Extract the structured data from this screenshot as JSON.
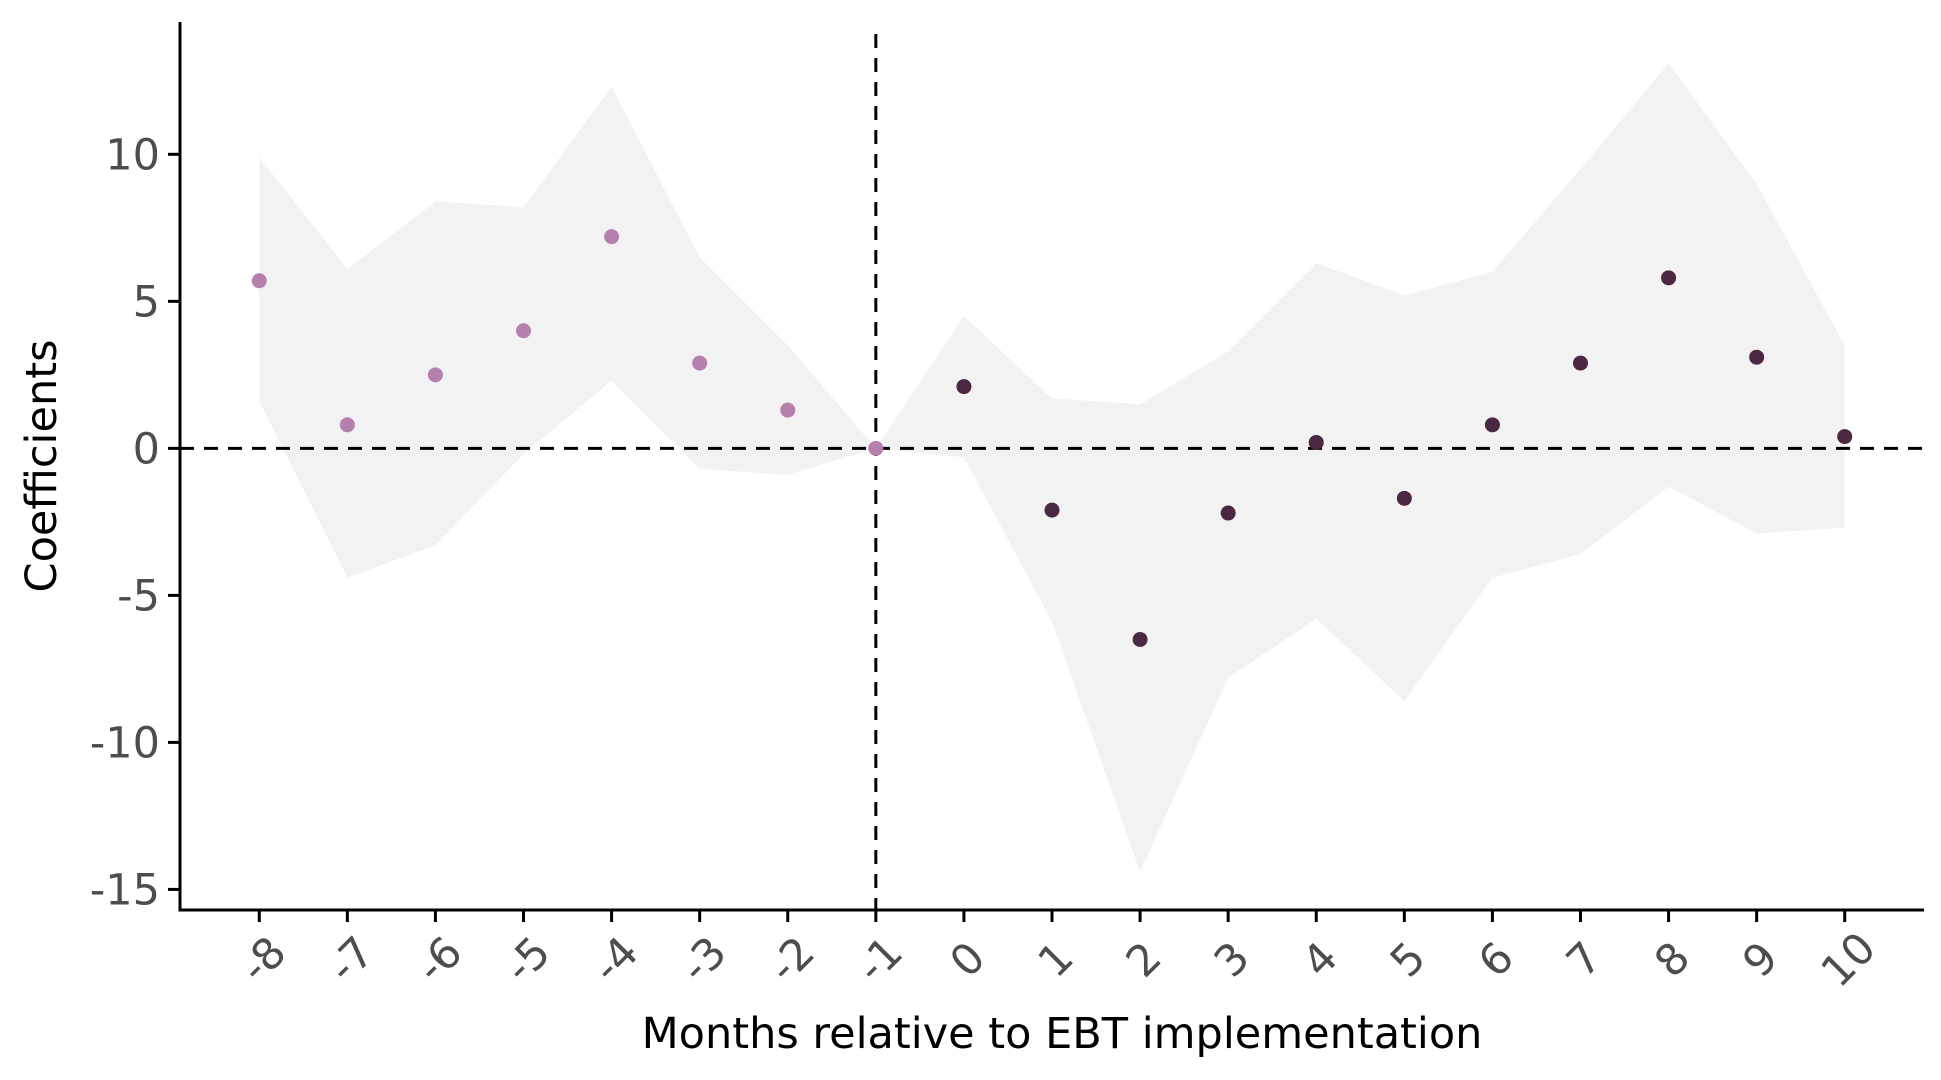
{
  "chart_data": {
    "type": "scatter",
    "title": "",
    "xlabel": "Months relative to EBT implementation",
    "ylabel": "Coefficients",
    "x": [
      -8,
      -7,
      -6,
      -5,
      -4,
      -3,
      -2,
      -1,
      0,
      1,
      2,
      3,
      4,
      5,
      6,
      7,
      8,
      9,
      10
    ],
    "x_tick_labels": [
      "-8",
      "-7",
      "-6",
      "-5",
      "-4",
      "-3",
      "-2",
      "-1",
      "0",
      "1",
      "2",
      "3",
      "4",
      "5",
      "6",
      "7",
      "8",
      "9",
      "10"
    ],
    "y_ticks": [
      10,
      5,
      0,
      -5,
      -10,
      -15
    ],
    "y_tick_labels": [
      "10",
      "5",
      "0",
      "-5",
      "-10",
      "-15"
    ],
    "ylim": [
      -15.7,
      14.5
    ],
    "series": [
      {
        "group": "pre",
        "color": "#b580ac",
        "x": [
          -8,
          -7,
          -6,
          -5,
          -4,
          -3,
          -2,
          -1
        ],
        "y": [
          5.7,
          0.8,
          2.5,
          4.0,
          7.2,
          2.9,
          1.3,
          0.0
        ]
      },
      {
        "group": "post",
        "color": "#4a2842",
        "x": [
          0,
          1,
          2,
          3,
          4,
          5,
          6,
          7,
          8,
          9,
          10
        ],
        "y": [
          2.1,
          -2.1,
          -6.5,
          -2.2,
          0.2,
          -1.7,
          0.8,
          2.9,
          5.8,
          3.1,
          0.4
        ]
      }
    ],
    "confidence_band": {
      "color": "#f2f2f2",
      "x": [
        -8,
        -7,
        -6,
        -5,
        -4,
        -3,
        -2,
        -1,
        0,
        1,
        2,
        3,
        4,
        5,
        6,
        7,
        8,
        9,
        10
      ],
      "upper": [
        9.9,
        6.1,
        8.4,
        8.2,
        12.3,
        6.5,
        3.5,
        0.0,
        4.5,
        1.7,
        1.5,
        3.3,
        6.3,
        5.2,
        6.0,
        9.5,
        13.1,
        9.0,
        3.5
      ],
      "lower": [
        1.6,
        -4.4,
        -3.3,
        -0.2,
        2.3,
        -0.7,
        -0.9,
        0.0,
        -0.3,
        -5.9,
        -14.4,
        -7.8,
        -5.8,
        -8.6,
        -4.4,
        -3.6,
        -1.3,
        -2.9,
        -2.7
      ]
    },
    "reference_lines": {
      "horizontal_y": 0,
      "vertical_x": -1,
      "style": "dashed"
    },
    "grid": false,
    "legend": "none"
  }
}
